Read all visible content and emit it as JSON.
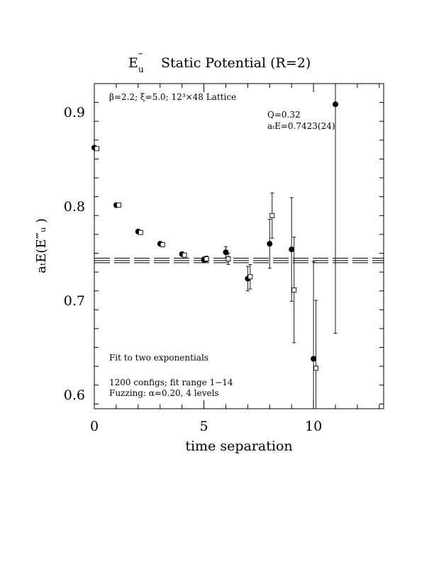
{
  "title": {
    "main": "Static Potential (R=2)",
    "rep": "E",
    "rep_sup": "‴",
    "rep_sub": "u"
  },
  "annotations": {
    "lattice": "β=2.2; ξ=5.0; 12³×48 Lattice",
    "q": "Q=0.32",
    "ate": "aₜE=0.7423(24)",
    "fit": "Fit to two exponentials",
    "configs": "1200 configs; fit range 1−14",
    "fuzzing": "Fuzzing: α=0.20, 4 levels"
  },
  "axes": {
    "xlabel": "time separation",
    "ylabel": "aₜE(E‴ᵤ )"
  },
  "chart_data": {
    "type": "scatter",
    "title": "E‴u Static Potential (R=2)",
    "xlabel": "time separation",
    "ylabel": "a_t E(E‴_u)",
    "xlim": [
      0,
      13.2
    ],
    "ylim": [
      0.585,
      0.93
    ],
    "xticks": [
      0,
      5,
      10
    ],
    "xtick_labels": [
      "0",
      "5",
      "10"
    ],
    "yticks": [
      0.6,
      0.7,
      0.8,
      0.9
    ],
    "ytick_labels": [
      "0.6",
      "0.7",
      "0.8",
      "0.9"
    ],
    "series": [
      {
        "marker": "filled-circle",
        "points": [
          {
            "x": 0,
            "y": 0.862,
            "err": 0.001
          },
          {
            "x": 1,
            "y": 0.801,
            "err": 0.001
          },
          {
            "x": 2,
            "y": 0.773,
            "err": 0.002
          },
          {
            "x": 3,
            "y": 0.76,
            "err": 0.002
          },
          {
            "x": 4,
            "y": 0.749,
            "err": 0.002
          },
          {
            "x": 5,
            "y": 0.743,
            "err": 0.003
          },
          {
            "x": 6,
            "y": 0.751,
            "err": 0.006
          },
          {
            "x": 7,
            "y": 0.723,
            "err": 0.013
          },
          {
            "x": 8,
            "y": 0.76,
            "err": 0.026
          },
          {
            "x": 9,
            "y": 0.754,
            "err": 0.055
          },
          {
            "x": 10,
            "y": 0.638,
            "err": 0.103
          },
          {
            "x": 11,
            "y": 0.908,
            "err": 0.243
          }
        ]
      },
      {
        "marker": "open-square",
        "points": [
          {
            "x": 0,
            "y": 0.861,
            "err": 0.001
          },
          {
            "x": 1,
            "y": 0.801,
            "err": 0.001
          },
          {
            "x": 2,
            "y": 0.772,
            "err": 0.002
          },
          {
            "x": 3,
            "y": 0.759,
            "err": 0.002
          },
          {
            "x": 4,
            "y": 0.748,
            "err": 0.002
          },
          {
            "x": 5,
            "y": 0.744,
            "err": 0.003
          },
          {
            "x": 6,
            "y": 0.744,
            "err": 0.006
          },
          {
            "x": 7,
            "y": 0.725,
            "err": 0.013
          },
          {
            "x": 8,
            "y": 0.79,
            "err": 0.024
          },
          {
            "x": 9,
            "y": 0.711,
            "err": 0.056
          },
          {
            "x": 10,
            "y": 0.628,
            "err": 0.072
          }
        ]
      }
    ],
    "fit": {
      "value": 0.7423,
      "error": 0.0024,
      "style": "dashed band (central value with upper and lower error lines)",
      "x_range": [
        0,
        13.2
      ]
    }
  }
}
